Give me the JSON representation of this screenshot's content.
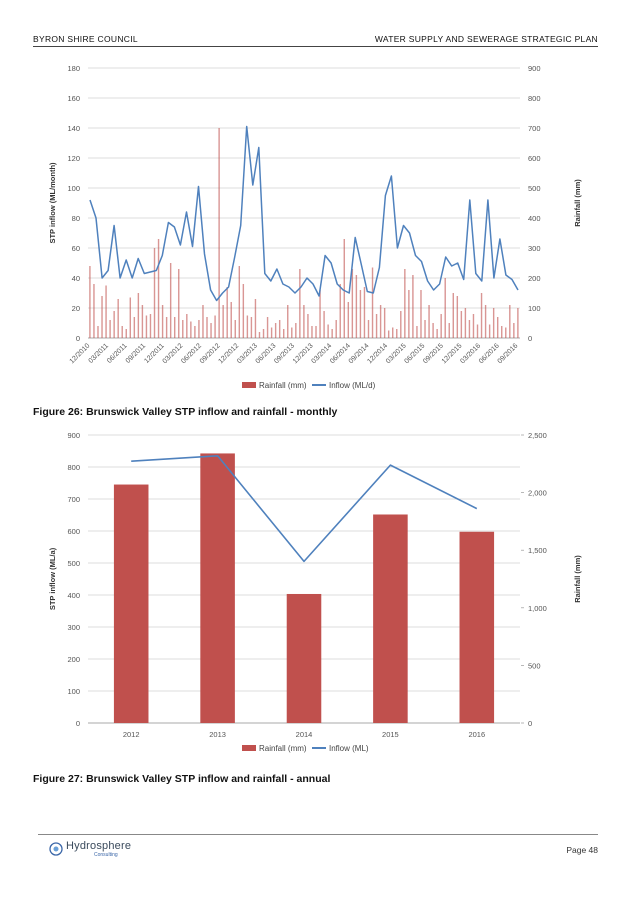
{
  "header": {
    "left": "BYRON SHIRE COUNCIL",
    "right": "WATER SUPPLY AND SEWERAGE STRATEGIC PLAN"
  },
  "colors": {
    "rain": "#c0504d",
    "inflow": "#4f81bd",
    "grid": "#d0d0d0"
  },
  "chart_data": [
    {
      "type": "bar+line",
      "title": "",
      "ylabel": "STP inflow (ML/month)",
      "y2label": "Rainfall (mm)",
      "ylim": [
        0,
        180
      ],
      "y2lim": [
        0,
        900
      ],
      "yticks": [
        "0",
        "20",
        "40",
        "60",
        "80",
        "100",
        "120",
        "140",
        "160",
        "180"
      ],
      "y2ticks": [
        "0",
        "100",
        "200",
        "300",
        "400",
        "500",
        "600",
        "700",
        "800",
        "900"
      ],
      "xticks": [
        "12/2010",
        "03/2011",
        "06/2011",
        "09/2011",
        "12/2011",
        "03/2012",
        "06/2012",
        "09/2012",
        "12/2012",
        "03/2013",
        "06/2013",
        "09/2013",
        "12/2013",
        "03/2014",
        "06/2014",
        "09/2014",
        "12/2014",
        "03/2015",
        "06/2015",
        "09/2015",
        "12/2015",
        "03/2016",
        "06/2016",
        "09/2016"
      ],
      "legend": [
        "Rainfall (mm)",
        "Inflow (ML/d)"
      ],
      "legend_position": "bottom",
      "series": [
        {
          "name": "Rainfall (mm)",
          "kind": "bar",
          "axis": "right",
          "values": [
            240,
            180,
            40,
            140,
            175,
            60,
            90,
            130,
            40,
            30,
            135,
            70,
            150,
            110,
            75,
            80,
            300,
            330,
            110,
            70,
            250,
            70,
            230,
            60,
            80,
            55,
            40,
            60,
            110,
            70,
            50,
            75,
            700,
            110,
            170,
            120,
            60,
            240,
            180,
            75,
            70,
            130,
            20,
            30,
            70,
            35,
            50,
            60,
            30,
            110,
            35,
            50,
            230,
            110,
            80,
            40,
            40,
            160,
            90,
            45,
            30,
            60,
            180,
            330,
            120,
            230,
            210,
            160,
            170,
            60,
            235,
            80,
            110,
            100,
            25,
            35,
            30,
            90,
            230,
            160,
            210,
            40,
            160,
            60,
            110,
            50,
            30,
            80,
            200,
            50,
            150,
            140,
            90,
            100,
            60,
            80,
            45,
            150,
            110,
            45,
            100,
            70,
            40,
            35,
            110,
            50,
            100
          ]
        },
        {
          "name": "Inflow (ML/d)",
          "kind": "line",
          "axis": "left",
          "values": [
            92,
            80,
            40,
            45,
            75,
            40,
            52,
            40,
            53,
            43,
            44,
            45,
            55,
            77,
            74,
            62,
            84,
            61,
            101,
            56,
            32,
            25,
            30,
            34,
            54,
            75,
            141,
            102,
            127,
            43,
            38,
            46,
            36,
            34,
            30,
            34,
            40,
            36,
            28,
            55,
            50,
            36,
            32,
            30,
            67,
            49,
            31,
            30,
            47,
            95,
            108,
            60,
            75,
            70,
            55,
            51,
            38,
            32,
            36,
            54,
            48,
            50,
            39,
            92,
            43,
            38,
            92,
            40,
            66,
            42,
            39,
            32
          ]
        }
      ]
    },
    {
      "type": "bar+line",
      "title": "",
      "ylabel": "STP inflow (ML/a)",
      "y2label": "Rainfall (mm)",
      "ylim": [
        0,
        900
      ],
      "y2lim": [
        0,
        2500
      ],
      "yticks": [
        "0",
        "100",
        "200",
        "300",
        "400",
        "500",
        "600",
        "700",
        "800",
        "900"
      ],
      "y2ticks": [
        "0",
        "500",
        "1,000",
        "1,500",
        "2,000",
        "2,500"
      ],
      "categories": [
        "2012",
        "2013",
        "2014",
        "2015",
        "2016"
      ],
      "legend": [
        "Rainfall (mm)",
        "Inflow (ML)"
      ],
      "legend_position": "bottom",
      "series": [
        {
          "name": "Rainfall (mm)",
          "kind": "bar",
          "axis": "right",
          "values": [
            2070,
            2340,
            1120,
            1810,
            1660
          ]
        },
        {
          "name": "Inflow (ML)",
          "kind": "line",
          "axis": "left",
          "values": [
            818,
            835,
            505,
            806,
            670
          ]
        }
      ]
    }
  ],
  "captions": {
    "fig26": "Figure 26: Brunswick Valley STP inflow and rainfall - monthly",
    "fig27": "Figure 27: Brunswick Valley STP inflow and rainfall - annual"
  },
  "footer": {
    "logo": "Hydrosphere",
    "logo_sub": "Consulting",
    "page": "Page 48"
  }
}
